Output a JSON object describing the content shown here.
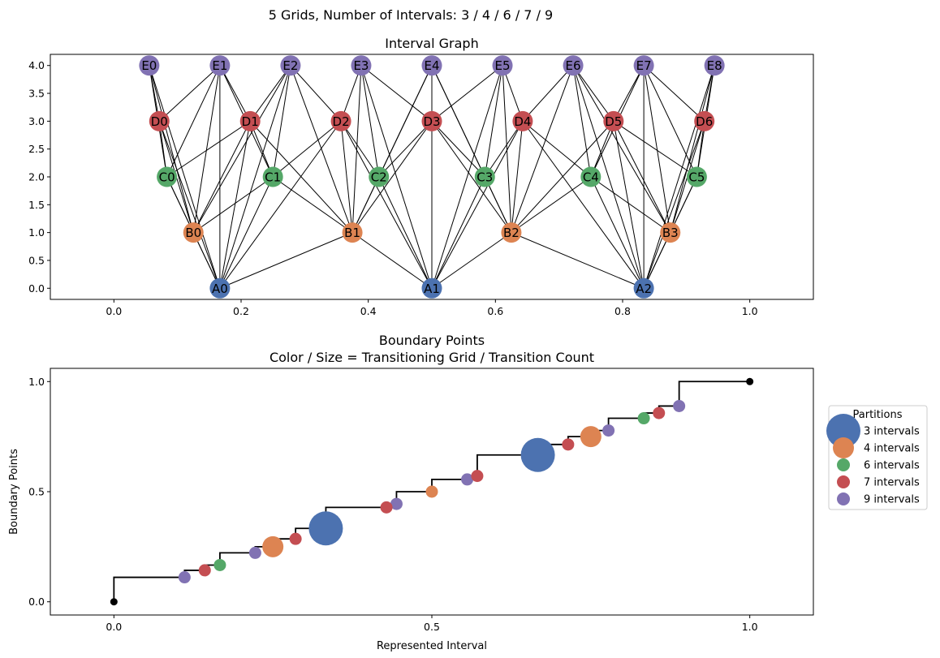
{
  "suptitle": "5 Grids, Number of Intervals: 3 / 4 / 6 / 7 / 9",
  "chart_data": [
    {
      "type": "scatter",
      "title": "Interval Graph",
      "xlabel": "",
      "ylabel": "",
      "xlim": [
        -0.1,
        1.1
      ],
      "ylim": [
        -0.2,
        4.2
      ],
      "xticks": [
        "0.0",
        "0.2",
        "0.4",
        "0.6",
        "0.8",
        "1.0"
      ],
      "xtick_values": [
        0.0,
        0.2,
        0.4,
        0.6,
        0.8,
        1.0
      ],
      "yticks": [
        "0.0",
        "0.5",
        "1.0",
        "1.5",
        "2.0",
        "2.5",
        "3.0",
        "3.5",
        "4.0"
      ],
      "ytick_values": [
        0.0,
        0.5,
        1.0,
        1.5,
        2.0,
        2.5,
        3.0,
        3.5,
        4.0
      ],
      "grid": false,
      "levels": [
        {
          "prefix": "A",
          "y": 0,
          "intervals": 3,
          "color": "#4c72b0"
        },
        {
          "prefix": "B",
          "y": 1,
          "intervals": 4,
          "color": "#dd8452"
        },
        {
          "prefix": "C",
          "y": 2,
          "intervals": 6,
          "color": "#55a868"
        },
        {
          "prefix": "D",
          "y": 3,
          "intervals": 7,
          "color": "#c44e52"
        },
        {
          "prefix": "E",
          "y": 4,
          "intervals": 9,
          "color": "#8172b3"
        }
      ],
      "edges": "every node is joined to each node on other levels whose interval overlaps its interval"
    },
    {
      "type": "scatter",
      "title": "Boundary Points",
      "subtitle": "Color / Size = Transitioning Grid / Transition Count",
      "xlabel": "Represented Interval",
      "ylabel": "Boundary Points",
      "xlim": [
        -0.1,
        1.1
      ],
      "ylim": [
        -0.06,
        1.06
      ],
      "xticks": [
        "0.0",
        "0.5",
        "1.0"
      ],
      "xtick_values": [
        0.0,
        0.5,
        1.0
      ],
      "yticks": [
        "0.0",
        "0.5",
        "1.0"
      ],
      "ytick_values": [
        0.0,
        0.5,
        1.0
      ],
      "grid": false,
      "endpoints": [
        [
          0,
          0
        ],
        [
          1,
          1
        ]
      ],
      "series": [
        {
          "name": "3 intervals",
          "color": "#4c72b0",
          "points": [
            [
              0.3333,
              0.3333
            ],
            [
              0.6667,
              0.6667
            ]
          ]
        },
        {
          "name": "4 intervals",
          "color": "#dd8452",
          "points": [
            [
              0.25,
              0.25
            ],
            [
              0.5,
              0.5
            ],
            [
              0.75,
              0.75
            ]
          ]
        },
        {
          "name": "6 intervals",
          "color": "#55a868",
          "points": [
            [
              0.1667,
              0.1667
            ],
            [
              0.8333,
              0.8333
            ]
          ]
        },
        {
          "name": "7 intervals",
          "color": "#c44e52",
          "points": [
            [
              0.1429,
              0.1429
            ],
            [
              0.2857,
              0.2857
            ],
            [
              0.4286,
              0.4286
            ],
            [
              0.5714,
              0.5714
            ],
            [
              0.7143,
              0.7143
            ],
            [
              0.8571,
              0.8571
            ]
          ]
        },
        {
          "name": "9 intervals",
          "color": "#8172b3",
          "points": [
            [
              0.1111,
              0.1111
            ],
            [
              0.2222,
              0.2222
            ],
            [
              0.4444,
              0.4444
            ],
            [
              0.5556,
              0.5556
            ],
            [
              0.7778,
              0.7778
            ],
            [
              0.8889,
              0.8889
            ]
          ]
        }
      ],
      "legend": {
        "title": "Partitions",
        "placement": "right, outside the axes",
        "entries": [
          "3 intervals",
          "4 intervals",
          "6 intervals",
          "7 intervals",
          "9 intervals"
        ]
      }
    }
  ]
}
